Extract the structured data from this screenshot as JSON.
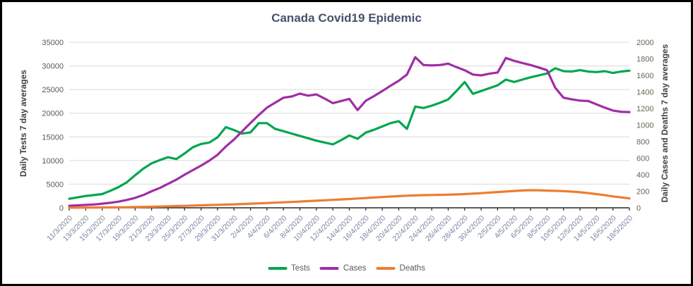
{
  "title": "Canada Covid19 Epidemic",
  "left_axis": {
    "title": "Daily Tests 7 day averages",
    "min": 0,
    "max": 35000,
    "ticks": [
      0,
      5000,
      10000,
      15000,
      20000,
      25000,
      30000,
      35000
    ]
  },
  "right_axis": {
    "title": "Daily Cases and Deaths 7 day averages",
    "min": 0,
    "max": 2000,
    "ticks": [
      0,
      200,
      400,
      600,
      800,
      1000,
      1200,
      1400,
      1600,
      1800,
      2000
    ]
  },
  "x_tick_labels": [
    "11/3/2020",
    "13/3/2020",
    "15/3/2020",
    "17/3/2020",
    "19/3/2020",
    "21/3/2020",
    "23/3/2020",
    "25/3/2020",
    "27/3/2020",
    "29/3/2020",
    "31/3/2020",
    "2/4/2020",
    "4/4/2020",
    "6/4/2020",
    "8/4/2020",
    "10/4/2020",
    "12/4/2020",
    "14/4/2020",
    "16/4/2020",
    "18/4/2020",
    "20/4/2020",
    "22/4/2020",
    "24/4/2020",
    "26/4/2020",
    "28/4/2020",
    "30/4/2020",
    "2/5/2020",
    "4/5/2020",
    "6/5/2020",
    "8/5/2020",
    "10/5/2020",
    "12/5/2020",
    "14/5/2020",
    "16/5/2020",
    "18/5/2020"
  ],
  "colors": {
    "tests": "#00A650",
    "cases": "#A02DA5",
    "deaths": "#ED7D31",
    "gridline": "#D9D9D9",
    "axis_line": "#262626",
    "y_tick_label": "#595959",
    "right_tick_label": "#6E6254",
    "x_tick_label": "#7786A0",
    "title": "#44546A"
  },
  "chart_data": {
    "type": "line",
    "title": "Canada Covid19 Epidemic",
    "xlabel": "",
    "ylabel_left": "Daily Tests 7 day averages",
    "ylabel_right": "Daily Cases and Deaths 7 day averages",
    "ylim_left": [
      0,
      35000
    ],
    "ylim_right": [
      0,
      2000
    ],
    "grid": true,
    "legend_position": "bottom",
    "x": [
      "11/3/2020",
      "12/3/2020",
      "13/3/2020",
      "14/3/2020",
      "15/3/2020",
      "16/3/2020",
      "17/3/2020",
      "18/3/2020",
      "19/3/2020",
      "20/3/2020",
      "21/3/2020",
      "22/3/2020",
      "23/3/2020",
      "24/3/2020",
      "25/3/2020",
      "26/3/2020",
      "27/3/2020",
      "28/3/2020",
      "29/3/2020",
      "30/3/2020",
      "31/3/2020",
      "1/4/2020",
      "2/4/2020",
      "3/4/2020",
      "4/4/2020",
      "5/4/2020",
      "6/4/2020",
      "7/4/2020",
      "8/4/2020",
      "9/4/2020",
      "10/4/2020",
      "11/4/2020",
      "12/4/2020",
      "13/4/2020",
      "14/4/2020",
      "15/4/2020",
      "16/4/2020",
      "17/4/2020",
      "18/4/2020",
      "19/4/2020",
      "20/4/2020",
      "21/4/2020",
      "22/4/2020",
      "23/4/2020",
      "24/4/2020",
      "25/4/2020",
      "26/4/2020",
      "27/4/2020",
      "28/4/2020",
      "29/4/2020",
      "30/4/2020",
      "1/5/2020",
      "2/5/2020",
      "3/5/2020",
      "4/5/2020",
      "5/5/2020",
      "6/5/2020",
      "7/5/2020",
      "8/5/2020",
      "9/5/2020",
      "10/5/2020",
      "11/5/2020",
      "12/5/2020",
      "13/5/2020",
      "14/5/2020",
      "15/5/2020",
      "16/5/2020",
      "17/5/2020",
      "18/5/2020"
    ],
    "series": [
      {
        "name": "Tests",
        "axis": "left",
        "color": "#00A650",
        "values": [
          1900,
          2200,
          2500,
          2700,
          2900,
          3600,
          4400,
          5400,
          6900,
          8300,
          9400,
          10100,
          10700,
          10300,
          11500,
          12800,
          13500,
          13800,
          14900,
          17050,
          16450,
          15700,
          15950,
          17900,
          17900,
          16700,
          16200,
          15700,
          15200,
          14700,
          14200,
          13800,
          13400,
          14300,
          15300,
          14600,
          15900,
          16500,
          17200,
          17900,
          18300,
          16700,
          21400,
          21100,
          21600,
          22200,
          22900,
          24700,
          26600,
          24100,
          24700,
          25300,
          25900,
          27100,
          26600,
          27100,
          27600,
          28000,
          28400,
          29500,
          28900,
          28800,
          29100,
          28800,
          28700,
          28900,
          28500,
          28800,
          29000
        ]
      },
      {
        "name": "Cases",
        "axis": "right",
        "color": "#A02DA5",
        "values": [
          25,
          30,
          35,
          40,
          50,
          60,
          75,
          95,
          120,
          155,
          200,
          240,
          290,
          340,
          400,
          455,
          510,
          570,
          640,
          740,
          825,
          925,
          1025,
          1120,
          1210,
          1270,
          1330,
          1345,
          1380,
          1355,
          1370,
          1320,
          1265,
          1290,
          1316,
          1180,
          1294,
          1350,
          1410,
          1475,
          1535,
          1610,
          1820,
          1725,
          1720,
          1725,
          1742,
          1700,
          1662,
          1610,
          1600,
          1620,
          1635,
          1810,
          1776,
          1750,
          1725,
          1695,
          1662,
          1450,
          1330,
          1310,
          1295,
          1290,
          1250,
          1210,
          1175,
          1160,
          1157
        ]
      },
      {
        "name": "Deaths",
        "axis": "right",
        "color": "#ED7D31",
        "values": [
          2,
          2,
          3,
          3,
          4,
          5,
          6,
          7,
          9,
          11,
          13,
          15,
          18,
          21,
          24,
          27,
          30,
          33,
          36,
          39,
          42,
          46,
          50,
          54,
          58,
          62,
          66,
          71,
          76,
          81,
          86,
          91,
          96,
          101,
          106,
          112,
          118,
          124,
          130,
          136,
          141,
          146,
          150,
          153,
          155,
          157,
          159,
          162,
          166,
          171,
          177,
          184,
          191,
          197,
          203,
          209,
          213,
          212,
          208,
          205,
          202,
          196,
          188,
          178,
          166,
          152,
          138,
          126,
          114
        ]
      }
    ]
  }
}
